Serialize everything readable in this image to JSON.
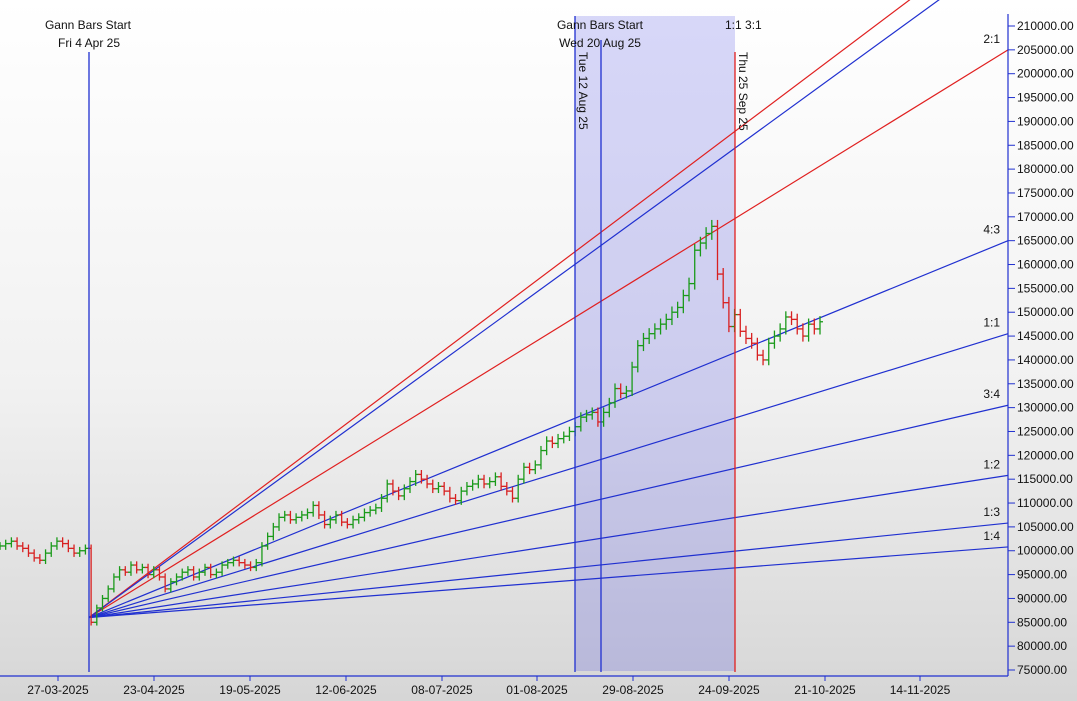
{
  "chart_data": {
    "type": "candlestick",
    "y_ticks": [
      "210000.00",
      "205000.00",
      "200000.00",
      "195000.00",
      "190000.00",
      "185000.00",
      "180000.00",
      "175000.00",
      "170000.00",
      "165000.00",
      "160000.00",
      "155000.00",
      "150000.00",
      "145000.00",
      "140000.00",
      "135000.00",
      "130000.00",
      "125000.00",
      "120000.00",
      "115000.00",
      "110000.00",
      "105000.00",
      "100000.00",
      "95000.00",
      "90000.00",
      "85000.00",
      "80000.00",
      "75000.00"
    ],
    "x_ticks": [
      "27-03-2025",
      "23-04-2025",
      "19-05-2025",
      "12-06-2025",
      "08-07-2025",
      "01-08-2025",
      "29-08-2025",
      "24-09-2025",
      "21-10-2025",
      "14-11-2025"
    ],
    "ylim": [
      74000,
      211500
    ],
    "annotations": {
      "gann_start_1_title": "Gann Bars Start",
      "gann_start_1_date": "Fri 4 Apr 25",
      "gann_start_2_title": "Gann Bars Start",
      "gann_start_2_date": "Wed 20 Aug 25",
      "vline_tue": "Tue 12 Aug 25",
      "vline_thu": "Thu 25 Sep 25",
      "top_label": "1:1  3:1"
    },
    "gann_fan": {
      "origin_price": 86000,
      "lines": [
        {
          "ratio": "3:1",
          "color": "#e02020",
          "end_price": 231000,
          "label": "3:1"
        },
        {
          "ratio": "2:1",
          "color": "#e02020",
          "end_price": 205000,
          "label": "2:1"
        },
        {
          "ratio": "1.5:1",
          "color": "#2030d0",
          "end_price": 226000,
          "label": ""
        },
        {
          "ratio": "4:3",
          "color": "#2030d0",
          "end_price": 165000,
          "label": "4:3"
        },
        {
          "ratio": "1:1",
          "color": "#2030d0",
          "end_price": 145500,
          "label": "1:1"
        },
        {
          "ratio": "3:4",
          "color": "#2030d0",
          "end_price": 130500,
          "label": "3:4"
        },
        {
          "ratio": "1:2",
          "color": "#2030d0",
          "end_price": 115800,
          "label": "1:2"
        },
        {
          "ratio": "1:3",
          "color": "#2030d0",
          "end_price": 105800,
          "label": "1:3"
        },
        {
          "ratio": "1:4",
          "color": "#2030d0",
          "end_price": 100800,
          "label": "1:4"
        }
      ]
    },
    "closes": [
      101000,
      101500,
      102000,
      101000,
      100500,
      99500,
      98500,
      98000,
      99500,
      101000,
      102000,
      101500,
      100500,
      99500,
      100000,
      100500,
      85000,
      88000,
      90000,
      92000,
      94500,
      96000,
      95500,
      97000,
      96000,
      96500,
      95000,
      96000,
      94500,
      92000,
      93500,
      94500,
      95500,
      96000,
      94500,
      95500,
      96500,
      95000,
      95500,
      97000,
      97500,
      98000,
      97500,
      97000,
      96500,
      97500,
      101000,
      103000,
      105000,
      107000,
      107500,
      106500,
      107000,
      107500,
      108000,
      109500,
      107500,
      105500,
      106500,
      107500,
      106000,
      105500,
      106500,
      107000,
      108000,
      108500,
      109000,
      111000,
      114000,
      112500,
      111500,
      113000,
      114500,
      116000,
      115000,
      114000,
      113000,
      113500,
      112500,
      111000,
      110500,
      112500,
      113500,
      114000,
      115000,
      114000,
      114500,
      115500,
      113500,
      112500,
      111000,
      115000,
      117500,
      117000,
      118000,
      121000,
      123000,
      122500,
      123500,
      124000,
      125000,
      126000,
      128000,
      128500,
      129000,
      127000,
      129000,
      131000,
      134000,
      133000,
      133500,
      138500,
      143000,
      144500,
      145500,
      146500,
      147500,
      148500,
      150000,
      151000,
      153500,
      156000,
      163000,
      164500,
      166500,
      168000,
      158000,
      152000,
      147000,
      149500,
      146000,
      144500,
      143500,
      141000,
      140000,
      143500,
      145000,
      146500,
      149000,
      148500,
      146500,
      145000,
      147500,
      146500,
      148000
    ]
  }
}
